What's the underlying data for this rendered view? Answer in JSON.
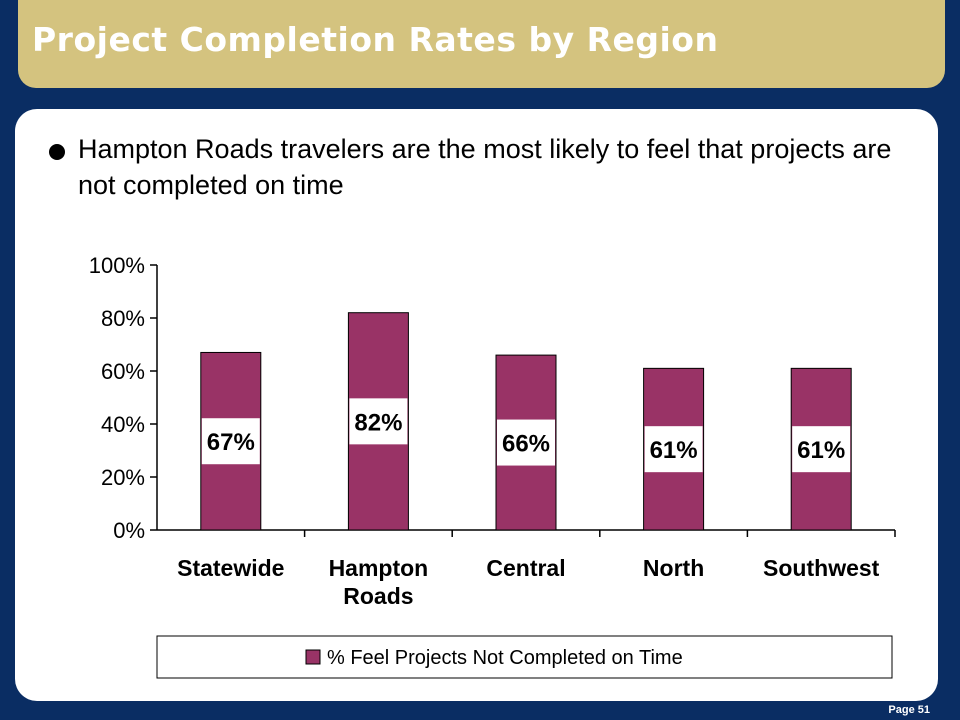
{
  "slide": {
    "title": "Project Completion Rates by Region",
    "bullet": "Hampton Roads travelers are the most likely to feel that projects are not completed on time",
    "page_label": "Page 51"
  },
  "chart_data": {
    "type": "bar",
    "categories": [
      "Statewide",
      "Hampton Roads",
      "Central",
      "North",
      "Southwest"
    ],
    "series": [
      {
        "name": "% Feel Projects Not Completed on Time",
        "values": [
          67,
          82,
          66,
          61,
          61
        ],
        "labels": [
          "67%",
          "82%",
          "66%",
          "61%",
          "61%"
        ],
        "color": "#993366"
      }
    ],
    "yticks": [
      "0%",
      "20%",
      "40%",
      "60%",
      "80%",
      "100%"
    ],
    "ylim": [
      0,
      100
    ],
    "legend_position": "bottom",
    "grid": false
  }
}
